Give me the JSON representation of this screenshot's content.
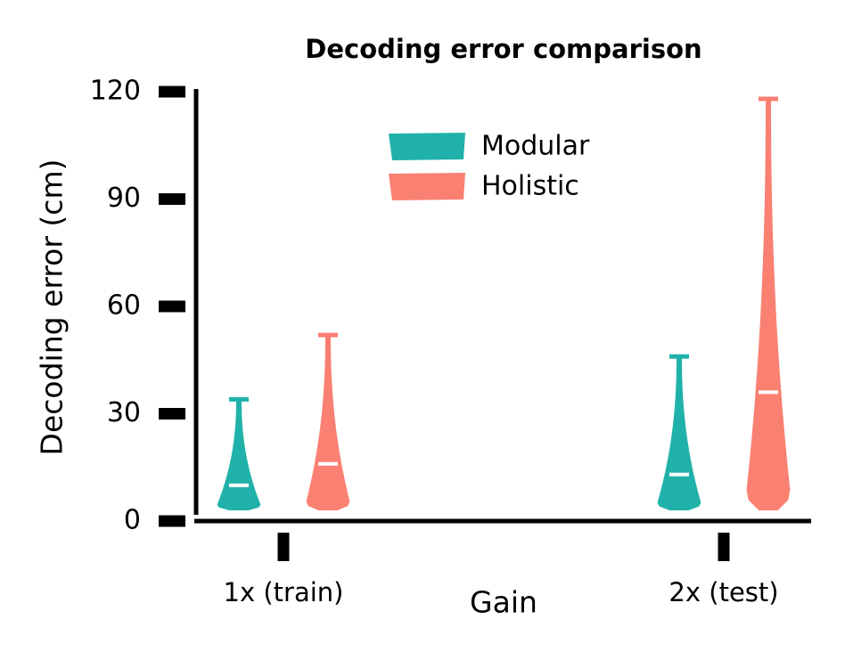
{
  "chart_data": {
    "type": "violin",
    "title": "Decoding error comparison",
    "xlabel": "Gain",
    "ylabel": "Decoding error (cm)",
    "categories": [
      "1x (train)",
      "2x (test)"
    ],
    "series": [
      {
        "name": "Modular",
        "color": "#20b2aa",
        "min": [
          3,
          3
        ],
        "median": [
          10,
          13
        ],
        "max": [
          34,
          46
        ]
      },
      {
        "name": "Holistic",
        "color": "#fa8072",
        "min": [
          3,
          3
        ],
        "median": [
          16,
          36
        ],
        "max": [
          52,
          118
        ]
      }
    ],
    "ylim": [
      0,
      120
    ],
    "yticks": [
      0,
      30,
      60,
      90,
      120
    ],
    "legend": "upper center"
  }
}
